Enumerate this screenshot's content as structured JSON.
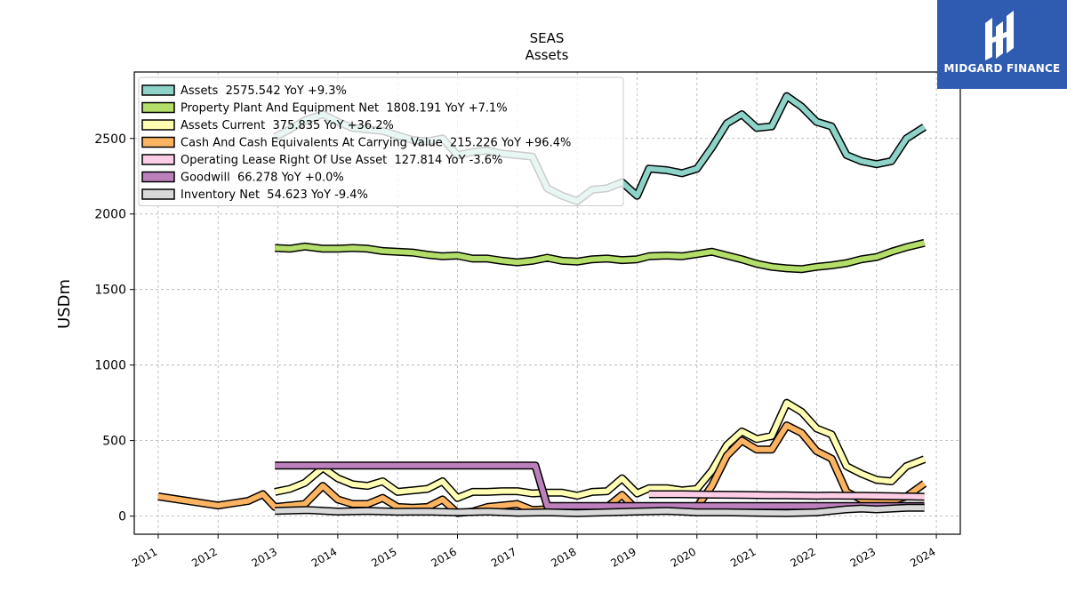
{
  "logo": {
    "text": "MIDGARD FINANCE",
    "icon": "midgard-logo-icon",
    "color": "#2f5bb0"
  },
  "chart_data": {
    "type": "line",
    "title": "SEAS",
    "subtitle": "Assets",
    "ylabel": "USDm",
    "xlabel": "",
    "xlim": [
      2010.6,
      2024.4
    ],
    "ylim": [
      -120,
      2940
    ],
    "x_ticks": [
      2011,
      2012,
      2013,
      2014,
      2015,
      2016,
      2017,
      2018,
      2019,
      2020,
      2021,
      2022,
      2023,
      2024
    ],
    "y_ticks": [
      0,
      500,
      1000,
      1500,
      2000,
      2500
    ],
    "grid": true,
    "legend_position": "top-left",
    "series": [
      {
        "name": "Assets  2575.542 YoY +9.3%",
        "color": "#8dd3c7",
        "x": [
          2012.95,
          2013.2,
          2013.45,
          2013.75,
          2014.0,
          2014.25,
          2014.5,
          2014.75,
          2015.0,
          2015.25,
          2015.5,
          2015.75,
          2016.0,
          2016.25,
          2016.5,
          2016.75,
          2017.0,
          2017.25,
          2017.5,
          2017.75,
          2018.0,
          2018.25,
          2018.5,
          2018.75,
          2019.0,
          2019.2,
          2019.5,
          2019.75,
          2020.0,
          2020.25,
          2020.5,
          2020.75,
          2021.0,
          2021.25,
          2021.5,
          2021.75,
          2022.0,
          2022.25,
          2022.5,
          2022.75,
          2023.0,
          2023.25,
          2023.5,
          2023.8
        ],
        "values": [
          2510,
          2560,
          2620,
          2660,
          2610,
          2570,
          2560,
          2550,
          2520,
          2490,
          2480,
          2500,
          2390,
          2410,
          2420,
          2400,
          2390,
          2380,
          2170,
          2120,
          2085,
          2160,
          2170,
          2210,
          2120,
          2300,
          2290,
          2270,
          2300,
          2440,
          2600,
          2660,
          2570,
          2580,
          2780,
          2710,
          2610,
          2580,
          2390,
          2350,
          2330,
          2350,
          2500,
          2575.542
        ]
      },
      {
        "name": "Property Plant And Equipment Net  1808.191 YoY +7.1%",
        "color": "#b3de69",
        "x": [
          2012.95,
          2013.2,
          2013.45,
          2013.75,
          2014.0,
          2014.25,
          2014.5,
          2014.75,
          2015.0,
          2015.25,
          2015.5,
          2015.75,
          2016.0,
          2016.25,
          2016.5,
          2016.75,
          2017.0,
          2017.25,
          2017.5,
          2017.75,
          2018.0,
          2018.25,
          2018.5,
          2018.75,
          2019.0,
          2019.2,
          2019.5,
          2019.75,
          2020.0,
          2020.25,
          2020.5,
          2020.75,
          2021.0,
          2021.25,
          2021.5,
          2021.75,
          2022.0,
          2022.25,
          2022.5,
          2022.75,
          2023.0,
          2023.25,
          2023.5,
          2023.8
        ],
        "values": [
          1775,
          1770,
          1785,
          1770,
          1770,
          1775,
          1770,
          1755,
          1750,
          1745,
          1730,
          1720,
          1725,
          1705,
          1705,
          1690,
          1680,
          1690,
          1710,
          1690,
          1685,
          1700,
          1705,
          1695,
          1700,
          1720,
          1725,
          1720,
          1735,
          1750,
          1725,
          1700,
          1670,
          1650,
          1640,
          1635,
          1650,
          1660,
          1675,
          1700,
          1715,
          1750,
          1780,
          1808.191
        ]
      },
      {
        "name": "Assets Current  375.835 YoY +36.2%",
        "color": "#ffffb3",
        "x": [
          2012.95,
          2013.2,
          2013.45,
          2013.75,
          2014.0,
          2014.25,
          2014.5,
          2014.75,
          2015.0,
          2015.25,
          2015.5,
          2015.75,
          2016.0,
          2016.25,
          2016.5,
          2016.75,
          2017.0,
          2017.25,
          2017.5,
          2017.75,
          2018.0,
          2018.25,
          2018.5,
          2018.75,
          2019.0,
          2019.2,
          2019.5,
          2019.75,
          2020.0,
          2020.25,
          2020.5,
          2020.75,
          2021.0,
          2021.25,
          2021.5,
          2021.75,
          2022.0,
          2022.25,
          2022.5,
          2022.75,
          2023.0,
          2023.25,
          2023.5,
          2023.8
        ],
        "values": [
          160,
          180,
          220,
          320,
          250,
          210,
          200,
          230,
          160,
          170,
          180,
          230,
          120,
          160,
          160,
          165,
          165,
          150,
          155,
          155,
          135,
          160,
          165,
          250,
          150,
          185,
          185,
          170,
          180,
          300,
          470,
          560,
          510,
          530,
          750,
          690,
          580,
          540,
          330,
          280,
          240,
          230,
          330,
          375.835
        ]
      },
      {
        "name": "Cash And Cash Equivalents At Carrying Value  215.226 YoY +96.4%",
        "color": "#fdb462",
        "x": [
          2011.0,
          2011.5,
          2012.0,
          2012.5,
          2012.75,
          2012.95,
          2013.2,
          2013.45,
          2013.75,
          2014.0,
          2014.25,
          2014.5,
          2014.75,
          2015.0,
          2015.25,
          2015.5,
          2015.75,
          2016.0,
          2016.25,
          2016.5,
          2016.75,
          2017.0,
          2017.25,
          2017.5,
          2017.75,
          2018.0,
          2018.25,
          2018.5,
          2018.75,
          2019.0,
          2019.2,
          2019.5,
          2019.75,
          2020.0,
          2020.25,
          2020.5,
          2020.75,
          2021.0,
          2021.25,
          2021.5,
          2021.75,
          2022.0,
          2022.25,
          2022.5,
          2022.75,
          2023.0,
          2023.25,
          2023.5,
          2023.8
        ],
        "values": [
          130,
          100,
          70,
          100,
          145,
          60,
          70,
          80,
          200,
          110,
          80,
          80,
          120,
          60,
          55,
          60,
          110,
          20,
          30,
          60,
          70,
          80,
          40,
          45,
          40,
          40,
          60,
          60,
          140,
          40,
          60,
          50,
          50,
          60,
          200,
          400,
          500,
          440,
          440,
          600,
          550,
          430,
          380,
          160,
          110,
          100,
          100,
          130,
          215.226
        ]
      },
      {
        "name": "Operating Lease Right Of Use Asset  127.814 YoY -3.6%",
        "color": "#fccde5",
        "x": [
          2019.2,
          2019.5,
          2019.75,
          2020.0,
          2020.25,
          2020.5,
          2020.75,
          2021.0,
          2021.25,
          2021.5,
          2021.75,
          2022.0,
          2022.25,
          2022.5,
          2022.75,
          2023.0,
          2023.25,
          2023.5,
          2023.8
        ],
        "values": [
          145,
          145,
          145,
          143,
          142,
          141,
          140,
          139,
          138,
          137,
          136,
          135,
          136,
          135,
          134,
          133,
          132,
          130,
          127.814
        ]
      },
      {
        "name": "Goodwill  66.278 YoY +0.0%",
        "color": "#bc80bd",
        "x": [
          2012.95,
          2013.5,
          2014.0,
          2014.5,
          2015.0,
          2015.5,
          2016.0,
          2016.5,
          2017.0,
          2017.3,
          2017.5,
          2018.0,
          2018.5,
          2019.0,
          2019.5,
          2020.0,
          2020.5,
          2021.0,
          2021.5,
          2022.0,
          2022.5,
          2023.0,
          2023.5,
          2023.8
        ],
        "values": [
          335,
          335,
          335,
          335,
          335,
          335,
          335,
          335,
          335,
          335,
          66.278,
          66.278,
          66.278,
          66.278,
          66.278,
          66.278,
          66.278,
          66.278,
          66.278,
          66.278,
          66.278,
          66.278,
          66.278,
          66.278
        ]
      },
      {
        "name": "Inventory Net  54.623 YoY -9.4%",
        "color": "#d9d9d9",
        "x": [
          2012.95,
          2013.5,
          2014.0,
          2014.5,
          2015.0,
          2015.5,
          2016.0,
          2016.5,
          2017.0,
          2017.5,
          2018.0,
          2018.5,
          2019.0,
          2019.5,
          2020.0,
          2020.5,
          2021.0,
          2021.5,
          2022.0,
          2022.25,
          2022.5,
          2022.75,
          2023.0,
          2023.25,
          2023.5,
          2023.8
        ],
        "values": [
          35,
          40,
          30,
          35,
          28,
          30,
          25,
          30,
          22,
          25,
          20,
          25,
          30,
          35,
          25,
          25,
          22,
          20,
          25,
          35,
          45,
          50,
          45,
          50,
          55,
          54.623
        ]
      }
    ]
  }
}
